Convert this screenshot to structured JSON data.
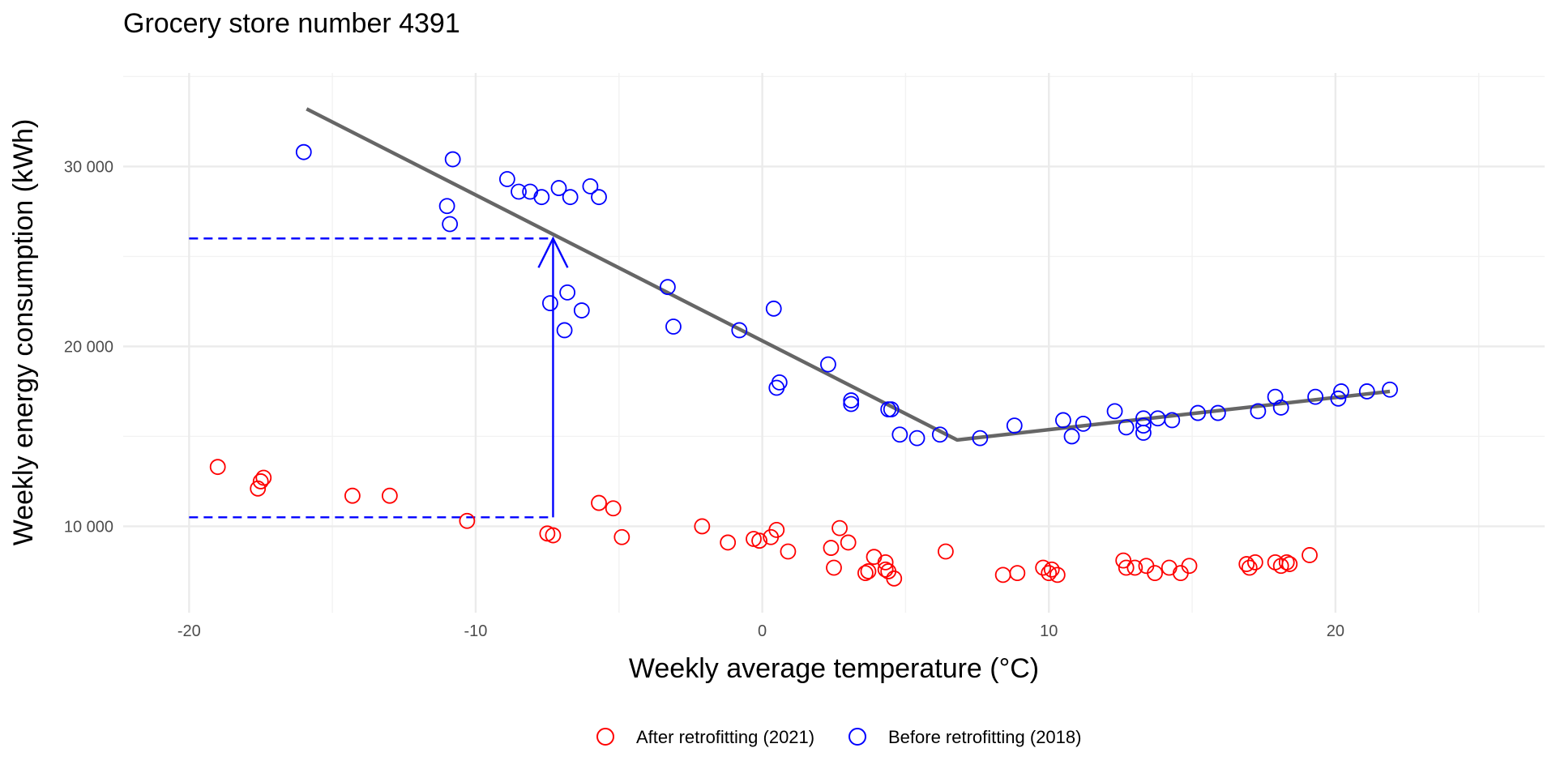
{
  "chart_data": {
    "type": "scatter",
    "title": "Grocery store number 4391",
    "xlabel": "Weekly average temperature (°C)",
    "ylabel": "Weekly energy consumption (kWh)",
    "xlim": [
      -22.3,
      27.3
    ],
    "ylim": [
      5200,
      35200
    ],
    "x_ticks": [
      -20,
      -10,
      0,
      10,
      20
    ],
    "x_tick_labels": [
      "-20",
      "-10",
      "0",
      "10",
      "20"
    ],
    "y_ticks": [
      10000,
      20000,
      30000
    ],
    "y_tick_labels": [
      "10 000",
      "20 000",
      "30 000"
    ],
    "grid": true,
    "legend_position": "bottom",
    "colors": {
      "after": "#ff0000",
      "before": "#0000ff",
      "fit": "#666666",
      "annotation": "#0000ff"
    },
    "series": [
      {
        "name": "After retrofitting (2021)",
        "color": "#ff0000",
        "marker": "open-circle",
        "points": [
          [
            -19.0,
            13300
          ],
          [
            -17.6,
            12100
          ],
          [
            -17.5,
            12500
          ],
          [
            -17.4,
            12700
          ],
          [
            -14.3,
            11700
          ],
          [
            -13.0,
            11700
          ],
          [
            -10.3,
            10300
          ],
          [
            -7.5,
            9600
          ],
          [
            -7.3,
            9500
          ],
          [
            -5.7,
            11300
          ],
          [
            -5.2,
            11000
          ],
          [
            -4.9,
            9400
          ],
          [
            -2.1,
            10000
          ],
          [
            -1.2,
            9100
          ],
          [
            -0.3,
            9300
          ],
          [
            -0.1,
            9200
          ],
          [
            0.3,
            9400
          ],
          [
            0.5,
            9800
          ],
          [
            0.9,
            8600
          ],
          [
            2.4,
            8800
          ],
          [
            2.5,
            7700
          ],
          [
            2.7,
            9900
          ],
          [
            3.0,
            9100
          ],
          [
            3.6,
            7400
          ],
          [
            3.7,
            7500
          ],
          [
            3.9,
            8300
          ],
          [
            4.3,
            8000
          ],
          [
            4.3,
            7600
          ],
          [
            4.4,
            7500
          ],
          [
            4.6,
            7100
          ],
          [
            6.4,
            8600
          ],
          [
            8.4,
            7300
          ],
          [
            8.9,
            7400
          ],
          [
            9.8,
            7700
          ],
          [
            10.0,
            7400
          ],
          [
            10.1,
            7600
          ],
          [
            10.3,
            7300
          ],
          [
            12.6,
            8100
          ],
          [
            12.7,
            7700
          ],
          [
            13.0,
            7700
          ],
          [
            13.4,
            7800
          ],
          [
            13.7,
            7400
          ],
          [
            14.2,
            7700
          ],
          [
            14.6,
            7400
          ],
          [
            14.9,
            7800
          ],
          [
            16.9,
            7900
          ],
          [
            17.0,
            7700
          ],
          [
            17.2,
            8000
          ],
          [
            17.9,
            8000
          ],
          [
            18.1,
            7800
          ],
          [
            18.3,
            8000
          ],
          [
            18.4,
            7900
          ],
          [
            19.1,
            8400
          ]
        ]
      },
      {
        "name": "Before retrofitting (2018)",
        "color": "#0000ff",
        "marker": "open-circle",
        "points": [
          [
            -16.0,
            30800
          ],
          [
            -11.0,
            27800
          ],
          [
            -10.9,
            26800
          ],
          [
            -10.8,
            30400
          ],
          [
            -8.9,
            29300
          ],
          [
            -8.5,
            28600
          ],
          [
            -8.1,
            28600
          ],
          [
            -7.7,
            28300
          ],
          [
            -7.1,
            28800
          ],
          [
            -6.7,
            28300
          ],
          [
            -6.0,
            28900
          ],
          [
            -5.7,
            28300
          ],
          [
            -7.4,
            22400
          ],
          [
            -6.8,
            23000
          ],
          [
            -6.9,
            20900
          ],
          [
            -6.3,
            22000
          ],
          [
            -3.3,
            23300
          ],
          [
            -3.1,
            21100
          ],
          [
            -0.8,
            20900
          ],
          [
            0.4,
            22100
          ],
          [
            0.5,
            17700
          ],
          [
            0.6,
            18000
          ],
          [
            2.3,
            19000
          ],
          [
            3.1,
            17000
          ],
          [
            3.1,
            16800
          ],
          [
            4.4,
            16500
          ],
          [
            4.5,
            16500
          ],
          [
            4.8,
            15100
          ],
          [
            5.4,
            14900
          ],
          [
            6.2,
            15100
          ],
          [
            7.6,
            14900
          ],
          [
            8.8,
            15600
          ],
          [
            10.5,
            15900
          ],
          [
            10.8,
            15000
          ],
          [
            11.2,
            15700
          ],
          [
            12.3,
            16400
          ],
          [
            12.7,
            15500
          ],
          [
            13.3,
            16000
          ],
          [
            13.3,
            15200
          ],
          [
            13.3,
            15600
          ],
          [
            13.8,
            16000
          ],
          [
            14.3,
            15900
          ],
          [
            15.2,
            16300
          ],
          [
            15.9,
            16300
          ],
          [
            17.3,
            16400
          ],
          [
            17.9,
            17200
          ],
          [
            18.1,
            16600
          ],
          [
            19.3,
            17200
          ],
          [
            20.1,
            17100
          ],
          [
            20.2,
            17500
          ],
          [
            21.1,
            17500
          ],
          [
            21.9,
            17600
          ]
        ]
      }
    ],
    "fit_line": {
      "color": "#666666",
      "points": [
        [
          -15.9,
          33200
        ],
        [
          6.8,
          14800
        ],
        [
          21.9,
          17500
        ]
      ]
    },
    "annotations": [
      {
        "type": "vertical-arrow",
        "color": "#0000ff",
        "x": -7.3,
        "from_y": 10500,
        "to_y": 26000
      },
      {
        "type": "horizontal-dashed",
        "color": "#0000ff",
        "y": 26000,
        "from_x": -20,
        "to_x": -7.3
      },
      {
        "type": "horizontal-dashed",
        "color": "#0000ff",
        "y": 10500,
        "from_x": -20,
        "to_x": -7.3
      }
    ]
  }
}
